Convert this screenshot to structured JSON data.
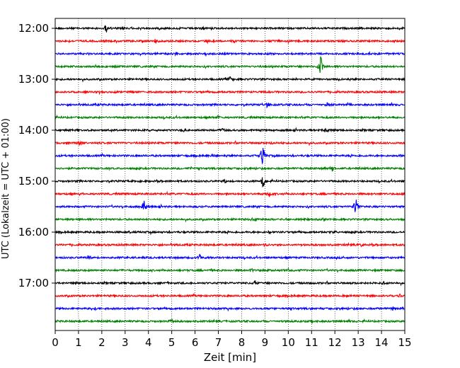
{
  "chart_data": {
    "type": "line",
    "title": "",
    "xlabel": "Zeit  [min]",
    "ylabel": "UTC (Lokalzeit = UTC + 01:00)",
    "xlim": [
      0,
      15
    ],
    "x_ticks": [
      "0",
      "1",
      "2",
      "3",
      "4",
      "5",
      "6",
      "7",
      "8",
      "9",
      "10",
      "11",
      "12",
      "13",
      "14",
      "15"
    ],
    "y_tick_labels": [
      "12:00",
      "13:00",
      "14:00",
      "15:00",
      "16:00",
      "17:00"
    ],
    "grid": "vertical dotted lines at each minute",
    "trace_colors": [
      "#000000",
      "#ff0000",
      "#0000ff",
      "#008000"
    ],
    "traces": [
      {
        "start": "12:00",
        "events": [
          {
            "t": 2.2,
            "amp": 1.0
          },
          {
            "t": 2.9,
            "amp": 0.5
          },
          {
            "t": 6.3,
            "amp": 0.4
          }
        ]
      },
      {
        "start": "12:15",
        "events": [
          {
            "t": 4.3,
            "amp": 0.4
          },
          {
            "t": 10.0,
            "amp": 0.3
          }
        ]
      },
      {
        "start": "12:30",
        "events": [
          {
            "t": 5.2,
            "amp": 0.3
          }
        ]
      },
      {
        "start": "12:45",
        "events": [
          {
            "t": 11.4,
            "amp": 2.0
          }
        ]
      },
      {
        "start": "13:00",
        "events": [
          {
            "t": 7.5,
            "amp": 0.5
          }
        ]
      },
      {
        "start": "13:15",
        "events": [
          {
            "t": 8.8,
            "amp": 0.3
          }
        ]
      },
      {
        "start": "13:30",
        "events": [
          {
            "t": 9.1,
            "amp": 0.6
          },
          {
            "t": 11.7,
            "amp": 0.4
          }
        ]
      },
      {
        "start": "13:45",
        "events": [
          {
            "t": 7.0,
            "amp": 0.3
          }
        ]
      },
      {
        "start": "14:00",
        "events": [
          {
            "t": 5.5,
            "amp": 0.5
          },
          {
            "t": 7.2,
            "amp": 0.5
          },
          {
            "t": 11.6,
            "amp": 0.6
          }
        ]
      },
      {
        "start": "14:15",
        "events": [
          {
            "t": 1.0,
            "amp": 0.6
          },
          {
            "t": 9.3,
            "amp": 0.3
          }
        ]
      },
      {
        "start": "14:30",
        "events": [
          {
            "t": 8.9,
            "amp": 1.8
          },
          {
            "t": 6.8,
            "amp": 0.4
          }
        ]
      },
      {
        "start": "14:45",
        "events": [
          {
            "t": 11.9,
            "amp": 0.6
          },
          {
            "t": 5.8,
            "amp": 0.3
          }
        ]
      },
      {
        "start": "15:00",
        "events": [
          {
            "t": 8.9,
            "amp": 1.2
          },
          {
            "t": 7.3,
            "amp": 0.4
          }
        ]
      },
      {
        "start": "15:15",
        "events": [
          {
            "t": 9.2,
            "amp": 0.6
          },
          {
            "t": 1.1,
            "amp": 0.3
          }
        ]
      },
      {
        "start": "15:30",
        "events": [
          {
            "t": 3.8,
            "amp": 1.2
          },
          {
            "t": 12.9,
            "amp": 1.6
          }
        ]
      },
      {
        "start": "15:45",
        "events": [
          {
            "t": 8.5,
            "amp": 0.4
          },
          {
            "t": 14.5,
            "amp": 0.3
          }
        ]
      },
      {
        "start": "16:00",
        "events": [
          {
            "t": 9.2,
            "amp": 0.4
          },
          {
            "t": 12.0,
            "amp": 0.3
          }
        ]
      },
      {
        "start": "16:15",
        "events": [
          {
            "t": 13.1,
            "amp": 0.4
          },
          {
            "t": 9.0,
            "amp": 0.3
          }
        ]
      },
      {
        "start": "16:30",
        "events": [
          {
            "t": 6.2,
            "amp": 0.5
          },
          {
            "t": 1.5,
            "amp": 0.3
          }
        ]
      },
      {
        "start": "16:45",
        "events": [
          {
            "t": 8.4,
            "amp": 0.6
          },
          {
            "t": 10.0,
            "amp": 0.3
          }
        ]
      },
      {
        "start": "17:00",
        "events": [
          {
            "t": 8.6,
            "amp": 0.5
          },
          {
            "t": 14.1,
            "amp": 0.3
          }
        ]
      },
      {
        "start": "17:15",
        "events": [
          {
            "t": 14.8,
            "amp": 0.4
          },
          {
            "t": 12.4,
            "amp": 0.3
          }
        ]
      },
      {
        "start": "17:30",
        "events": [
          {
            "t": 14.5,
            "amp": 0.4
          },
          {
            "t": 1.7,
            "amp": 0.3
          }
        ]
      },
      {
        "start": "17:45",
        "events": [
          {
            "t": 5.0,
            "amp": 0.5
          },
          {
            "t": 11.0,
            "amp": 0.4
          }
        ]
      }
    ]
  }
}
